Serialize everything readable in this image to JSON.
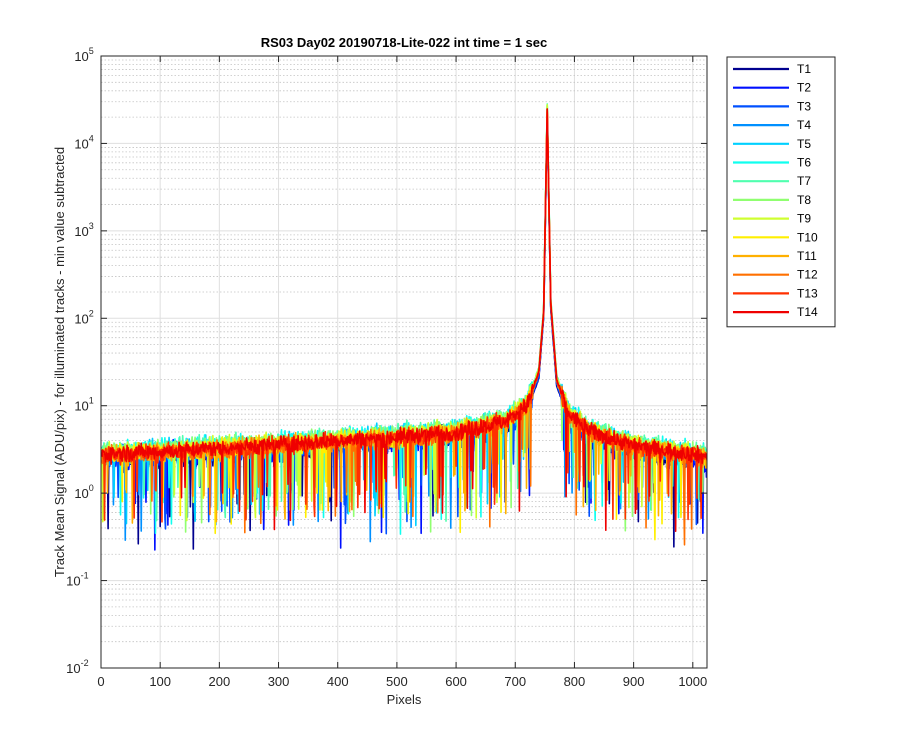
{
  "chart_data": {
    "type": "line",
    "title": "RS03 Day02 20190718-Lite-022 int time = 1 sec",
    "xlabel": "Pixels",
    "ylabel": "Track Mean Signal (ADU/pix) - for illuminated tracks - min value subtracted",
    "xlim": [
      0,
      1024
    ],
    "ylim": [
      0.01,
      100000
    ],
    "yscale": "log",
    "grid": true,
    "minor_grid": true,
    "legend_position": "outside-top-right",
    "x_ticks": [
      0,
      100,
      200,
      300,
      400,
      500,
      600,
      700,
      800,
      900,
      1000
    ],
    "x_tick_labels": [
      "0",
      "100",
      "200",
      "300",
      "400",
      "500",
      "600",
      "700",
      "800",
      "900",
      "1000"
    ],
    "y_tick_labels": [
      {
        "base": "10",
        "exp": "-2",
        "value": 0.01
      },
      {
        "base": "10",
        "exp": "-1",
        "value": 0.1
      },
      {
        "base": "10",
        "exp": "0",
        "value": 1
      },
      {
        "base": "10",
        "exp": "1",
        "value": 10
      },
      {
        "base": "10",
        "exp": "2",
        "value": 100
      },
      {
        "base": "10",
        "exp": "3",
        "value": 1000
      },
      {
        "base": "10",
        "exp": "4",
        "value": 10000
      },
      {
        "base": "10",
        "exp": "5",
        "value": 100000
      }
    ],
    "peak": {
      "pixel": 754,
      "value": 25000
    },
    "baseline_profile": {
      "x": [
        0,
        100,
        200,
        300,
        400,
        500,
        600,
        680,
        720,
        740,
        748,
        754,
        760,
        770,
        790,
        830,
        900,
        1000,
        1024
      ],
      "y": [
        2.8,
        3.0,
        3.3,
        3.6,
        4.0,
        4.4,
        5.0,
        6.5,
        10,
        25,
        120,
        25000,
        150,
        20,
        8,
        5,
        3.5,
        2.8,
        2.6
      ]
    },
    "series": [
      {
        "name": "T1",
        "color": "#00008f",
        "noise": 0.55,
        "scale": 0.85
      },
      {
        "name": "T2",
        "color": "#0010ff",
        "noise": 0.55,
        "scale": 0.88
      },
      {
        "name": "T3",
        "color": "#0050ff",
        "noise": 0.5,
        "scale": 0.9
      },
      {
        "name": "T4",
        "color": "#0090ff",
        "noise": 0.45,
        "scale": 0.95
      },
      {
        "name": "T5",
        "color": "#00d0ff",
        "noise": 0.45,
        "scale": 1.05
      },
      {
        "name": "T6",
        "color": "#10ffef",
        "noise": 0.45,
        "scale": 1.1
      },
      {
        "name": "T7",
        "color": "#50ffaf",
        "noise": 0.42,
        "scale": 1.1
      },
      {
        "name": "T8",
        "color": "#90ff70",
        "noise": 0.42,
        "scale": 1.08
      },
      {
        "name": "T9",
        "color": "#cfff30",
        "noise": 0.42,
        "scale": 1.05
      },
      {
        "name": "T10",
        "color": "#ffef00",
        "noise": 0.45,
        "scale": 1.0
      },
      {
        "name": "T11",
        "color": "#ffb000",
        "noise": 0.45,
        "scale": 0.97
      },
      {
        "name": "T12",
        "color": "#ff7000",
        "noise": 0.42,
        "scale": 0.97
      },
      {
        "name": "T13",
        "color": "#ff3000",
        "noise": 0.4,
        "scale": 0.98
      },
      {
        "name": "T14",
        "color": "#ef0000",
        "noise": 0.38,
        "scale": 1.0
      }
    ]
  }
}
